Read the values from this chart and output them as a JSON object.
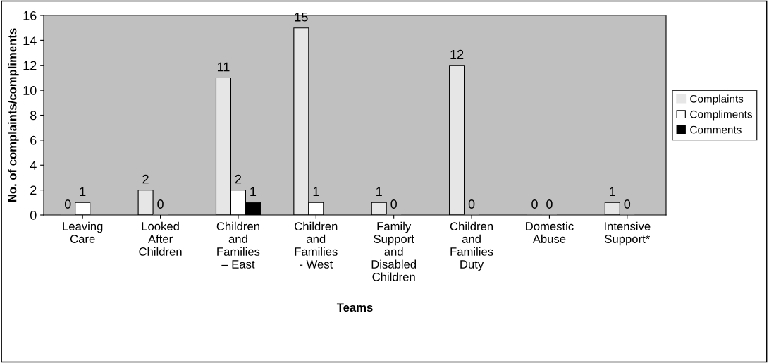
{
  "chart_data": {
    "type": "bar",
    "xlabel": "Teams",
    "ylabel": "No. of complaints/compliments",
    "categories": [
      "Leaving\nCare",
      "Looked\nAfter\nChildren",
      "Children\nand\nFamilies\n– East",
      "Children\nand\nFamilies\n- West",
      "Family\nSupport\nand\nDisabled\nChildren",
      "Children\nand\nFamilies\nDuty",
      "Domestic\nAbuse",
      "Intensive\nSupport*"
    ],
    "series": [
      {
        "name": "Complaints",
        "color": "#e6e6e6",
        "values": [
          0,
          2,
          11,
          15,
          1,
          12,
          0,
          1
        ]
      },
      {
        "name": "Compliments",
        "color": "#ffffff",
        "values": [
          1,
          0,
          2,
          1,
          0,
          0,
          0,
          0
        ]
      },
      {
        "name": "Comments",
        "color": "#000000",
        "values": [
          null,
          null,
          1,
          null,
          null,
          null,
          null,
          null
        ]
      }
    ],
    "ylim": [
      0,
      16
    ],
    "yticks": [
      0,
      2,
      4,
      6,
      8,
      10,
      12,
      14,
      16
    ],
    "grid": false,
    "legend": "right",
    "data_labels": true
  }
}
